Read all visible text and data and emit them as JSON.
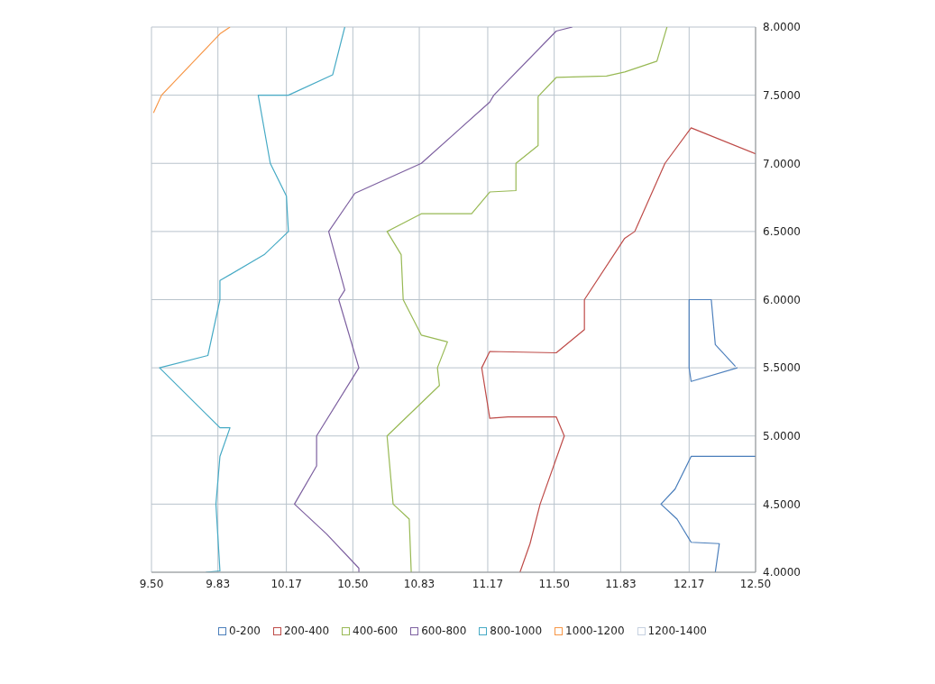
{
  "chart_data": {
    "type": "line",
    "xlim": [
      9.5,
      12.5
    ],
    "ylim": [
      4,
      8
    ],
    "xticks": [
      {
        "value": 9.5,
        "label": "9.50"
      },
      9.83,
      10.17,
      {
        "value": 10.5,
        "label": "10.50"
      },
      10.83,
      11.17,
      {
        "value": 11.5,
        "label": "11.50"
      },
      11.83,
      12.17,
      {
        "value": 12.5,
        "label": "12.50"
      }
    ],
    "yticks": [
      {
        "value": 4,
        "label": "4.0000"
      },
      {
        "value": 4.5,
        "label": "4.5000"
      },
      {
        "value": 5,
        "label": "5.0000"
      },
      {
        "value": 5.5,
        "label": "5.5000"
      },
      {
        "value": 6,
        "label": "6.0000"
      },
      {
        "value": 6.5,
        "label": "6.5000"
      },
      {
        "value": 7,
        "label": "7.0000"
      },
      {
        "value": 7.5,
        "label": "7.5000"
      },
      {
        "value": 8,
        "label": "8.0000"
      }
    ],
    "grid": true,
    "legend": "bottom",
    "marker": "none",
    "line_style": "solid",
    "series": [
      {
        "name": "0-200",
        "color": "#4a7ebb",
        "x": [
          12.5,
          12.18,
          12.1,
          12.03,
          12.11,
          12.18,
          12.32,
          12.3
        ],
        "values": [
          4.85,
          4.85,
          4.61,
          4.5,
          4.39,
          4.22,
          4.21,
          4.0
        ]
      },
      {
        "color": "#4f81bd",
        "x": [
          12.41,
          12.18,
          12.17,
          12.17,
          12.28,
          12.3,
          12.4
        ],
        "values": [
          5.5,
          5.4,
          5.5,
          6.0,
          6.0,
          5.67,
          5.51
        ]
      },
      {
        "name": "200-400",
        "color": "#be4b48",
        "x": [
          12.5,
          12.18,
          12.05,
          11.9,
          11.85,
          11.65,
          11.65,
          11.51,
          11.18,
          11.14,
          11.18,
          11.27,
          11.51,
          11.55,
          11.43,
          11.38,
          11.33
        ],
        "values": [
          7.07,
          7.26,
          7.0,
          6.5,
          6.45,
          6.0,
          5.78,
          5.61,
          5.62,
          5.5,
          5.13,
          5.14,
          5.14,
          5.0,
          4.5,
          4.21,
          4.0
        ]
      },
      {
        "name": "400-600",
        "color": "#98b954",
        "x": [
          12.06,
          12.01,
          11.85,
          11.76,
          11.51,
          11.42,
          11.42,
          11.31,
          11.31,
          11.18,
          11.09,
          10.84,
          10.67,
          10.74,
          10.75,
          10.84,
          10.97,
          10.92,
          10.93,
          10.67,
          10.7,
          10.78,
          10.79
        ],
        "values": [
          8.0,
          7.75,
          7.67,
          7.64,
          7.63,
          7.49,
          7.13,
          7.0,
          6.8,
          6.79,
          6.63,
          6.63,
          6.5,
          6.33,
          6.0,
          5.74,
          5.69,
          5.5,
          5.37,
          5.0,
          4.5,
          4.39,
          4.0
        ]
      },
      {
        "name": "600-800",
        "color": "#7d60a0",
        "x": [
          11.59,
          11.51,
          11.2,
          11.18,
          10.84,
          10.51,
          10.38,
          10.46,
          10.43,
          10.53,
          10.32,
          10.32,
          10.21,
          10.37,
          10.53,
          10.53
        ],
        "values": [
          8.0,
          7.97,
          7.5,
          7.45,
          7.0,
          6.78,
          6.5,
          6.07,
          6.0,
          5.5,
          5.0,
          4.78,
          4.5,
          4.28,
          4.03,
          4.0
        ]
      },
      {
        "name": "800-1000",
        "color": "#46aac5",
        "x": [
          10.46,
          10.4,
          10.18,
          10.03,
          10.09,
          10.17,
          10.18,
          10.06,
          9.84,
          9.84,
          9.78,
          9.54,
          9.84,
          9.89,
          9.84,
          9.82,
          9.84,
          9.77
        ],
        "values": [
          8.0,
          7.65,
          7.5,
          7.5,
          7.0,
          6.76,
          6.5,
          6.33,
          6.14,
          6.0,
          5.59,
          5.5,
          5.06,
          5.06,
          4.85,
          4.5,
          4.01,
          4.0
        ]
      },
      {
        "name": "1000-1200",
        "color": "#f79646",
        "x": [
          9.51,
          9.55,
          9.84,
          9.89
        ],
        "values": [
          7.37,
          7.5,
          7.95,
          8.0
        ]
      },
      {
        "name": "1200-1400",
        "color": "#c6d1e0"
      }
    ]
  }
}
